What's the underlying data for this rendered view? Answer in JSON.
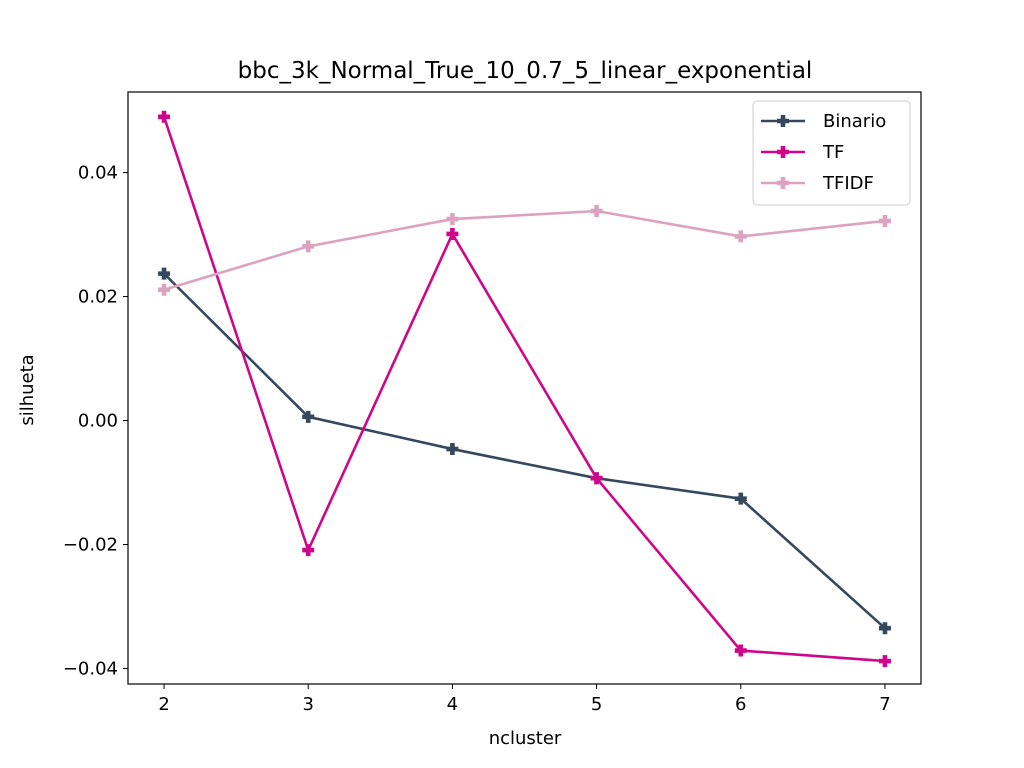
{
  "chart_data": {
    "type": "line",
    "title": "bbc_3k_Normal_True_10_0.7_5_linear_exponential",
    "xlabel": "ncluster",
    "ylabel": "silhueta",
    "x": [
      2,
      3,
      4,
      5,
      6,
      7
    ],
    "xlim": [
      1.75,
      7.25
    ],
    "ylim": [
      -0.0425,
      0.053
    ],
    "xticks": [
      2,
      3,
      4,
      5,
      6,
      7
    ],
    "xtick_labels": [
      "2",
      "3",
      "4",
      "5",
      "6",
      "7"
    ],
    "yticks": [
      -0.04,
      -0.02,
      0.0,
      0.02,
      0.04
    ],
    "ytick_labels": [
      "−0.04",
      "−0.02",
      "0.00",
      "0.02",
      "0.04"
    ],
    "grid": false,
    "legend_position": "top-right",
    "marker": "plus-filled",
    "series": [
      {
        "name": "Binario",
        "color": "#34495e",
        "values": [
          0.0237,
          0.0006,
          -0.0046,
          -0.0093,
          -0.0126,
          -0.0335
        ]
      },
      {
        "name": "TF",
        "color": "#d0068a",
        "values": [
          0.049,
          -0.0209,
          0.0301,
          -0.0093,
          -0.0371,
          -0.0388
        ]
      },
      {
        "name": "TFIDF",
        "color": "#dba3bf",
        "values": [
          0.0211,
          0.0281,
          0.0325,
          0.0338,
          0.0297,
          0.0322
        ]
      }
    ]
  }
}
